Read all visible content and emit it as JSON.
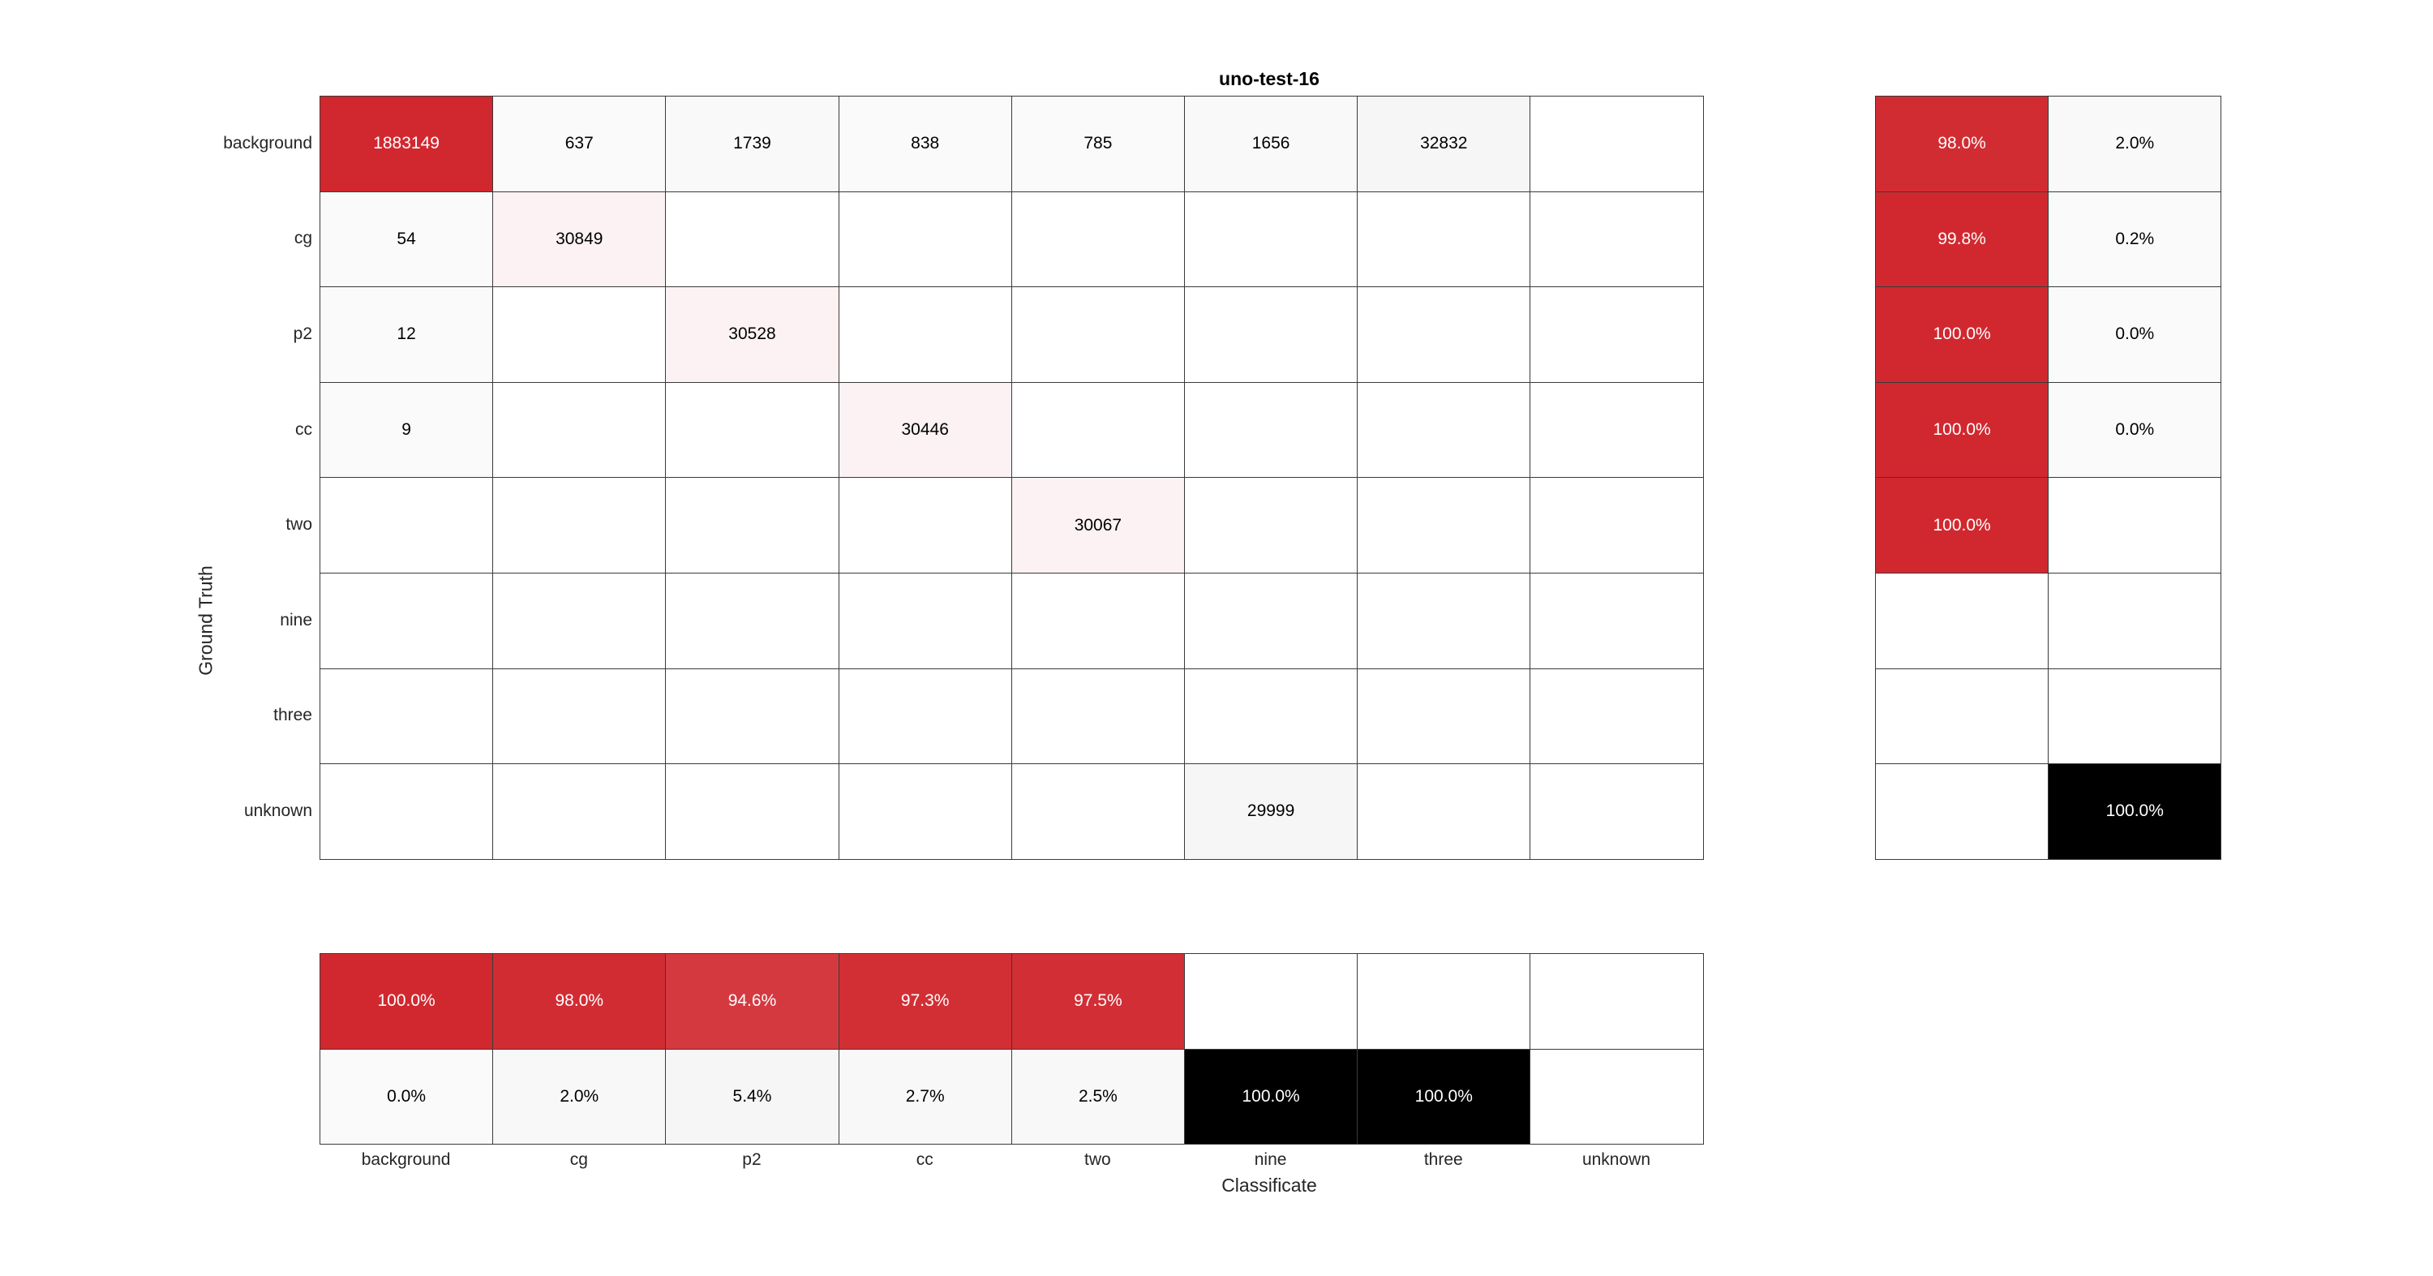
{
  "chart_data": {
    "type": "heatmap",
    "title": "uno-test-16",
    "xlabel": "Classificate",
    "ylabel": "Ground Truth",
    "classes": [
      "background",
      "cg",
      "p2",
      "cc",
      "two",
      "nine",
      "three",
      "unknown"
    ],
    "matrix": [
      [
        1883149,
        637,
        1739,
        838,
        785,
        1656,
        32832,
        null
      ],
      [
        54,
        30849,
        null,
        null,
        null,
        null,
        null,
        null
      ],
      [
        12,
        null,
        30528,
        null,
        null,
        null,
        null,
        null
      ],
      [
        9,
        null,
        null,
        30446,
        null,
        null,
        null,
        null
      ],
      [
        null,
        null,
        null,
        null,
        30067,
        null,
        null,
        null
      ],
      [
        null,
        null,
        null,
        null,
        null,
        null,
        null,
        null
      ],
      [
        null,
        null,
        null,
        null,
        null,
        null,
        null,
        null
      ],
      [
        null,
        null,
        null,
        null,
        null,
        29999,
        null,
        null
      ]
    ],
    "row_summary": [
      [
        "98.0%",
        "2.0%"
      ],
      [
        "99.8%",
        "0.2%"
      ],
      [
        "100.0%",
        "0.0%"
      ],
      [
        "100.0%",
        "0.0%"
      ],
      [
        "100.0%",
        null
      ],
      [
        null,
        null
      ],
      [
        null,
        null
      ],
      [
        null,
        "100.0%"
      ]
    ],
    "column_summary": [
      [
        "100.0%",
        "98.0%",
        "94.6%",
        "97.3%",
        "97.5%",
        null,
        null,
        null
      ],
      [
        "0.0%",
        "2.0%",
        "5.4%",
        "2.7%",
        "2.5%",
        "100.0%",
        "100.0%",
        null
      ]
    ],
    "colors": {
      "correct": "#d1282f",
      "incorrect": "#000000",
      "background": "#ffffff",
      "grid": "#3a3a3a"
    }
  }
}
